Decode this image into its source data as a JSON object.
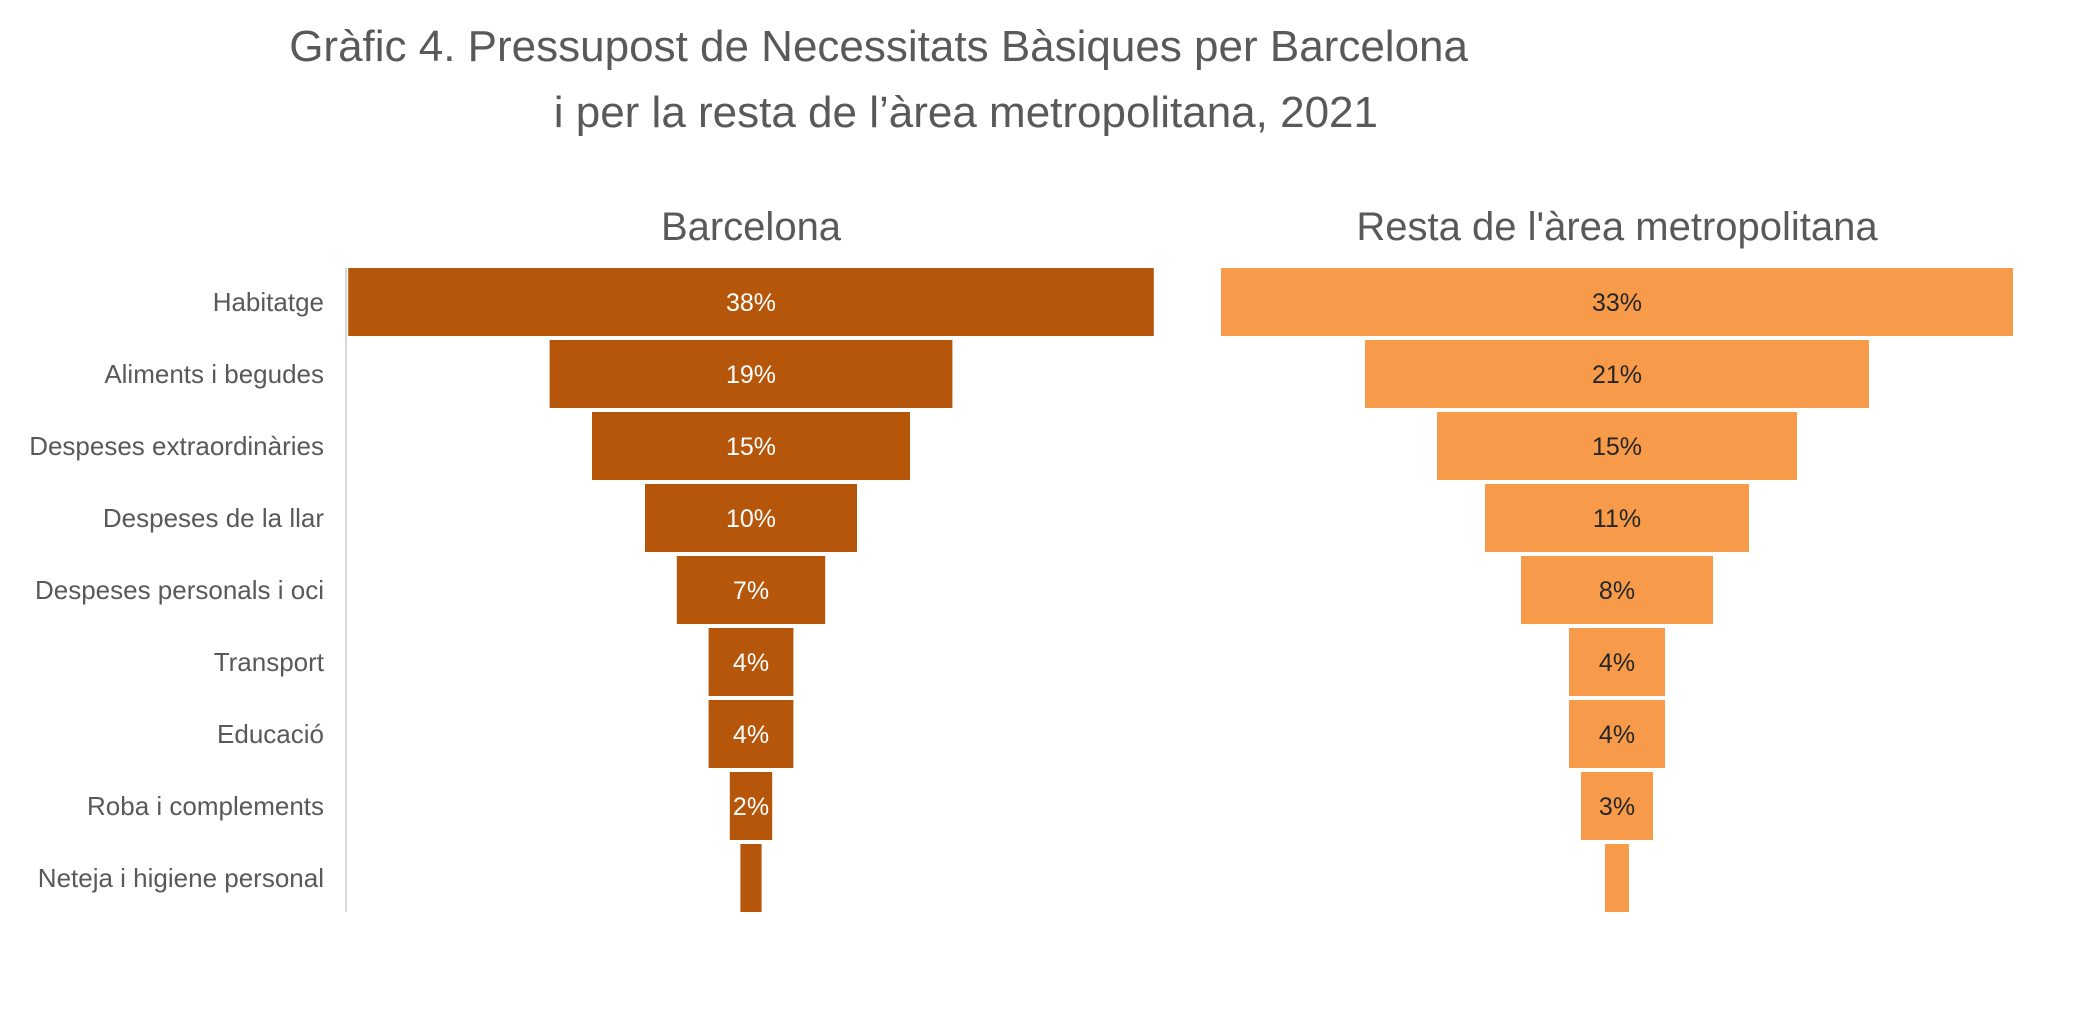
{
  "title_line1": "Gràfic 4. Pressupost de Necessitats Bàsiques per Barcelona",
  "title_line2": "i per la resta de l’àrea metropolitana, 2021",
  "colors": {
    "barcelona": "#b5560a",
    "resta": "#f79b4a",
    "barcelona_label": "#ffffff",
    "resta_label": "#262626",
    "axis": "#d9d9d9"
  },
  "chart_data": {
    "type": "bar",
    "orientation": "horizontal-funnel",
    "categories": [
      "Habitatge",
      "Aliments i begudes",
      "Despeses extraordinàries",
      "Despeses de la llar",
      "Despeses personals i oci",
      "Transport",
      "Educació",
      "Roba i complements",
      "Neteja i higiene personal"
    ],
    "series": [
      {
        "name": "Barcelona",
        "values": [
          38,
          19,
          15,
          10,
          7,
          4,
          4,
          2,
          1
        ],
        "labels": [
          "38%",
          "19%",
          "15%",
          "10%",
          "7%",
          "4%",
          "4%",
          "2%",
          ""
        ]
      },
      {
        "name": "Resta de l'àrea metropolitana",
        "values": [
          33,
          21,
          15,
          11,
          8,
          4,
          4,
          3,
          1
        ],
        "labels": [
          "33%",
          "21%",
          "15%",
          "11%",
          "8%",
          "4%",
          "4%",
          "3%",
          ""
        ]
      }
    ],
    "unit": "%"
  }
}
